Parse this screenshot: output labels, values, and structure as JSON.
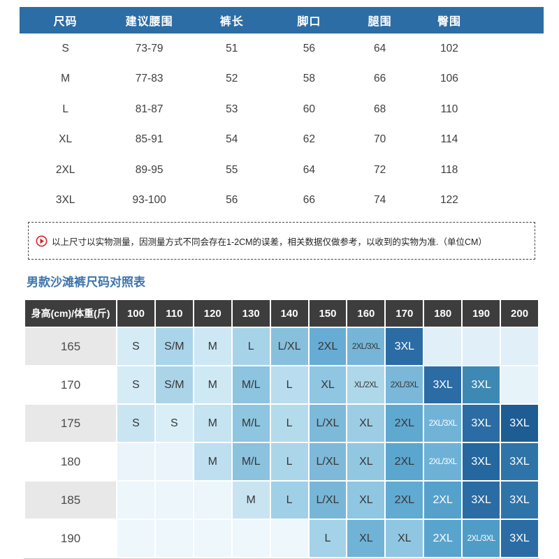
{
  "size_table": {
    "columns": [
      "尺码",
      "建议腰围",
      "裤长",
      "脚口",
      "腿围",
      "臀围"
    ],
    "rows": [
      [
        "S",
        "73-79",
        "51",
        "56",
        "64",
        "102"
      ],
      [
        "M",
        "77-83",
        "52",
        "58",
        "66",
        "106"
      ],
      [
        "L",
        "81-87",
        "53",
        "60",
        "68",
        "110"
      ],
      [
        "XL",
        "85-91",
        "54",
        "62",
        "70",
        "114"
      ],
      [
        "2XL",
        "89-95",
        "55",
        "64",
        "72",
        "118"
      ],
      [
        "3XL",
        "93-100",
        "56",
        "66",
        "74",
        "122"
      ]
    ],
    "header_bg": "#2d6da5",
    "header_fg": "#ffffff"
  },
  "notice": {
    "icon": "arrow-right-circle-icon",
    "icon_color": "#d9232e",
    "text": "以上尺寸以实物测量，因测量方式不同会存在1-2CM的误差，相关数据仅做参考，以收到的实物为准.（单位CM）"
  },
  "section_title": "男款沙滩裤尺码对照表",
  "matrix_table": {
    "header": [
      "身高(cm)/体重(斤)",
      "100",
      "110",
      "120",
      "130",
      "140",
      "150",
      "160",
      "170",
      "180",
      "190",
      "200"
    ],
    "header_bg": "#3d3d3d",
    "header_fg": "#ffffff",
    "rows": [
      {
        "label": "165",
        "label_bg": "#e8e8e8",
        "cells": [
          [
            "S",
            "#d5ebf6"
          ],
          [
            "S/M",
            "#aad4e9"
          ],
          [
            "M",
            "#cde8f4"
          ],
          [
            "L",
            "#a7d3e9"
          ],
          [
            "L/XL",
            "#87c0dd"
          ],
          [
            "2XL",
            "#67acd4"
          ],
          [
            "2XL/3XL",
            "#76b5d8"
          ],
          [
            "3XL",
            "#2b6ca4",
            "#ffffff"
          ],
          [
            "",
            "#e1eff8"
          ],
          [
            "",
            "#e1eff8"
          ],
          [
            "",
            "#e1eff8"
          ]
        ]
      },
      {
        "label": "170",
        "label_bg": "#ffffff",
        "cells": [
          [
            "S",
            "#d5ebf6"
          ],
          [
            "S/M",
            "#abd4e9"
          ],
          [
            "M",
            "#cfe9f4"
          ],
          [
            "M/L",
            "#8dc4df"
          ],
          [
            "L",
            "#b9ddee"
          ],
          [
            "XL",
            "#8fc6e2"
          ],
          [
            "XL/2XL",
            "#afd7ea"
          ],
          [
            "2XL/3XL",
            "#7ab7d9"
          ],
          [
            "3XL",
            "#2b6ca4",
            "#ffffff"
          ],
          [
            "3XL",
            "#3e88b4",
            "#ffffff"
          ],
          [
            "",
            "#e6f3f9"
          ]
        ]
      },
      {
        "label": "175",
        "label_bg": "#e8e8e8",
        "cells": [
          [
            "S",
            "#c9e5f2"
          ],
          [
            "S",
            "#d9eef7"
          ],
          [
            "M",
            "#c5e3f1"
          ],
          [
            "M/L",
            "#8ec5e0"
          ],
          [
            "L",
            "#b4dbec"
          ],
          [
            "L/XL",
            "#7db9d9"
          ],
          [
            "XL",
            "#9ccde5"
          ],
          [
            "2XL",
            "#5fa9d1"
          ],
          [
            "2XL/3XL",
            "#70b3d7",
            "#ffffff"
          ],
          [
            "3XL",
            "#2b6ca4",
            "#ffffff"
          ],
          [
            "3XL",
            "#1d5d93",
            "#ffffff"
          ]
        ]
      },
      {
        "label": "180",
        "label_bg": "#ffffff",
        "cells": [
          [
            "",
            "#eaf4fa"
          ],
          [
            "",
            "#eaf4fa"
          ],
          [
            "M",
            "#bddff0"
          ],
          [
            "M/L",
            "#8bc2de"
          ],
          [
            "L",
            "#abd6ea"
          ],
          [
            "L/XL",
            "#7eb9d9"
          ],
          [
            "XL",
            "#91c7e1"
          ],
          [
            "2XL",
            "#5ba6cf"
          ],
          [
            "2XL/3XL",
            "#6db1d6",
            "#ffffff"
          ],
          [
            "3XL",
            "#25679f",
            "#ffffff"
          ],
          [
            "3XL",
            "#2f74a8",
            "#ffffff"
          ]
        ]
      },
      {
        "label": "185",
        "label_bg": "#e8e8e8",
        "cells": [
          [
            "",
            "#ecf6fb"
          ],
          [
            "",
            "#ecf6fb"
          ],
          [
            "",
            "#ecf6fb"
          ],
          [
            "M",
            "#c8e4f1"
          ],
          [
            "L",
            "#a0d0e7"
          ],
          [
            "L/XL",
            "#78b6d7"
          ],
          [
            "XL",
            "#8fc6e1"
          ],
          [
            "2XL",
            "#61aad1"
          ],
          [
            "2XL",
            "#55a1cc",
            "#ffffff"
          ],
          [
            "3XL",
            "#2b6ca4",
            "#ffffff"
          ],
          [
            "3XL",
            "#2f74a8",
            "#ffffff"
          ]
        ]
      },
      {
        "label": "190",
        "label_bg": "#ffffff",
        "cells": [
          [
            "",
            "#eef7fb"
          ],
          [
            "",
            "#eef7fb"
          ],
          [
            "",
            "#eef7fb"
          ],
          [
            "",
            "#eef7fb"
          ],
          [
            "",
            "#eef7fb"
          ],
          [
            "L",
            "#a4d2e8"
          ],
          [
            "XL",
            "#70b3d6"
          ],
          [
            "XL",
            "#8fc6e1"
          ],
          [
            "2XL",
            "#59a4cd",
            "#ffffff"
          ],
          [
            "2XL/3XL",
            "#4f9dc6",
            "#ffffff"
          ],
          [
            "3XL",
            "#2b6ca4",
            "#ffffff"
          ]
        ]
      }
    ]
  },
  "colors": {
    "title": "#3e74ab",
    "cell_text": "#363636",
    "underline": "#cccccc",
    "notice_border": "#444444",
    "notice_text": "#222222"
  }
}
